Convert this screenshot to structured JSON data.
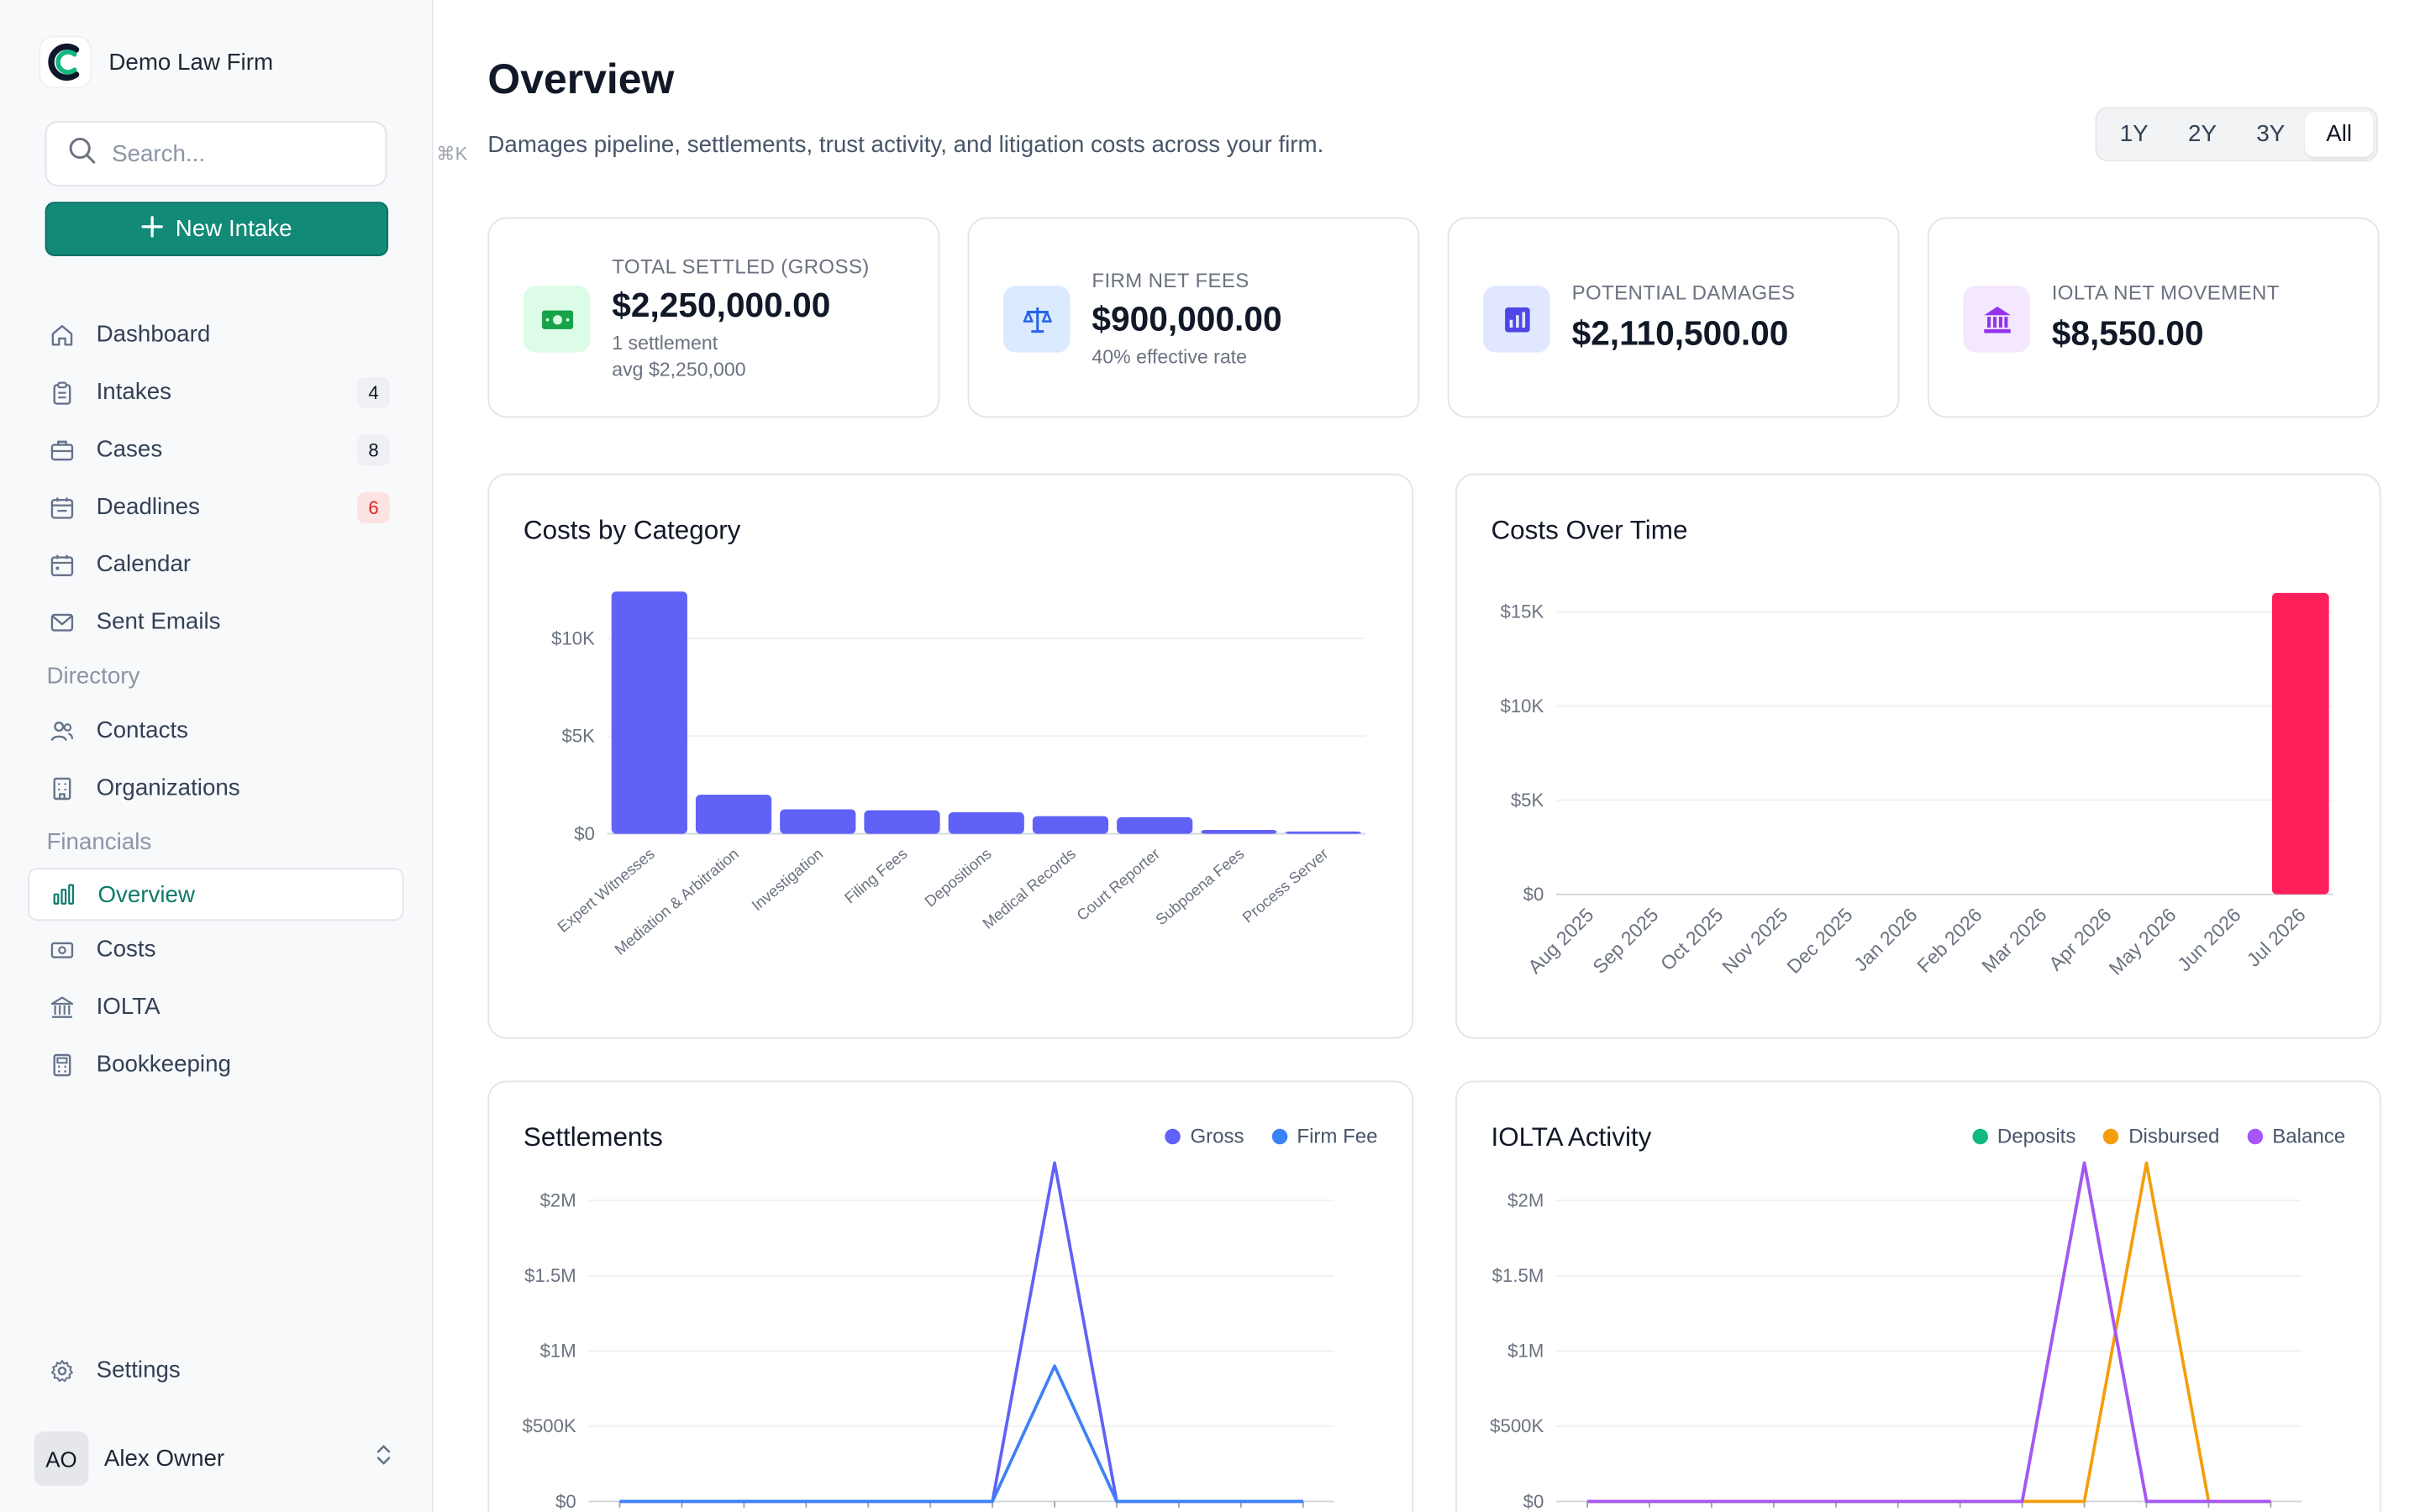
{
  "brand": {
    "name": "Demo Law Firm"
  },
  "search": {
    "placeholder": "Search...",
    "shortcut": "⌘K"
  },
  "new_intake": {
    "label": "New Intake"
  },
  "nav": [
    {
      "key": "dashboard",
      "label": "Dashboard",
      "icon": "home-icon"
    },
    {
      "key": "intakes",
      "label": "Intakes",
      "icon": "clipboard-icon",
      "badge": "4"
    },
    {
      "key": "cases",
      "label": "Cases",
      "icon": "briefcase-icon",
      "badge": "8"
    },
    {
      "key": "deadlines",
      "label": "Deadlines",
      "icon": "calendar-alert-icon",
      "badge": "6",
      "badge_color": "#dc2626"
    },
    {
      "key": "calendar",
      "label": "Calendar",
      "icon": "calendar-icon"
    },
    {
      "key": "sent-emails",
      "label": "Sent Emails",
      "icon": "mail-icon"
    }
  ],
  "directory": {
    "label": "Directory",
    "items": [
      {
        "key": "contacts",
        "label": "Contacts",
        "icon": "users-icon"
      },
      {
        "key": "organizations",
        "label": "Organizations",
        "icon": "building-icon"
      }
    ]
  },
  "financials": {
    "label": "Financials",
    "items": [
      {
        "key": "overview",
        "label": "Overview",
        "icon": "bar-chart-icon",
        "active": true
      },
      {
        "key": "costs",
        "label": "Costs",
        "icon": "banknote-icon"
      },
      {
        "key": "iolta",
        "label": "IOLTA",
        "icon": "landmark-icon"
      },
      {
        "key": "bookkeeping",
        "label": "Bookkeeping",
        "icon": "calculator-icon"
      }
    ]
  },
  "settings": {
    "label": "Settings"
  },
  "user": {
    "initials": "AO",
    "name": "Alex Owner"
  },
  "page": {
    "title": "Overview",
    "subtitle": "Damages pipeline, settlements, trust activity, and litigation costs across your firm."
  },
  "range": {
    "options": [
      "1Y",
      "2Y",
      "3Y",
      "All"
    ],
    "selected": "All"
  },
  "kpis": [
    {
      "label": "TOTAL SETTLED (GROSS)",
      "value": "$2,250,000.00",
      "sub1": "1 settlement",
      "sub2": "avg $2,250,000",
      "icon": "money-icon",
      "bg": "#dcfce7",
      "color": "#16a34a"
    },
    {
      "label": "FIRM NET FEES",
      "value": "$900,000.00",
      "sub1": "40% effective rate",
      "icon": "scale-icon",
      "bg": "#dbeafe",
      "color": "#2563eb"
    },
    {
      "label": "POTENTIAL DAMAGES",
      "value": "$2,110,500.00",
      "icon": "bar-chart-icon",
      "bg": "#e0e7ff",
      "color": "#4f46e5"
    },
    {
      "label": "IOLTA NET MOVEMENT",
      "value": "$8,550.00",
      "icon": "landmark-icon",
      "bg": "#f3e8ff",
      "color": "#9333ea"
    }
  ],
  "costs_by_category": {
    "title": "Costs by Category",
    "chart_data": {
      "type": "bar",
      "categories": [
        "Expert Witnesses",
        "Mediation & Arbitration",
        "Investigation",
        "Filing Fees",
        "Depositions",
        "Medical Records",
        "Court Reporter",
        "Subpoena Fees",
        "Process Server"
      ],
      "values": [
        12400,
        2000,
        1250,
        1200,
        1100,
        900,
        850,
        200,
        80
      ],
      "ylim": [
        0,
        12400
      ],
      "yticks": [
        "$0",
        "$5K",
        "$10K"
      ],
      "ytick_values": [
        0,
        5000,
        10000
      ],
      "color": "#6061f6",
      "grid": true
    }
  },
  "costs_over_time": {
    "title": "Costs Over Time",
    "chart_data": {
      "type": "bar",
      "categories": [
        "Aug 2025",
        "Sep 2025",
        "Oct 2025",
        "Nov 2025",
        "Dec 2025",
        "Jan 2026",
        "Feb 2026",
        "Mar 2026",
        "Apr 2026",
        "May 2026",
        "Jun 2026",
        "Jul 2026"
      ],
      "values": [
        0,
        0,
        0,
        0,
        0,
        0,
        0,
        0,
        0,
        0,
        0,
        16000
      ],
      "ylim": [
        0,
        15000
      ],
      "yticks": [
        "$0",
        "$5K",
        "$10K",
        "$15K"
      ],
      "ytick_values": [
        0,
        5000,
        10000,
        15000
      ],
      "color": "#ff1f5a",
      "grid": true
    }
  },
  "settlements": {
    "title": "Settlements",
    "chart_data": {
      "type": "line",
      "ylim": [
        0,
        2250000
      ],
      "yticks": [
        "$0",
        "$500K",
        "$1M",
        "$1.5M",
        "$2M"
      ],
      "ytick_values": [
        0,
        500000,
        1000000,
        1500000,
        2000000
      ],
      "grid": true,
      "legend": "top-right",
      "series": [
        {
          "name": "Gross",
          "color": "#6061f6",
          "values": [
            0,
            0,
            0,
            0,
            0,
            0,
            0,
            2250000,
            0,
            0,
            0,
            0
          ]
        },
        {
          "name": "Firm Fee",
          "color": "#3b82f6",
          "values": [
            0,
            0,
            0,
            0,
            0,
            0,
            0,
            900000,
            0,
            0,
            0,
            0
          ]
        }
      ]
    }
  },
  "iolta_activity": {
    "title": "IOLTA Activity",
    "chart_data": {
      "type": "line",
      "ylim": [
        0,
        2250000
      ],
      "yticks": [
        "$0",
        "$500K",
        "$1M",
        "$1.5M",
        "$2M"
      ],
      "ytick_values": [
        0,
        500000,
        1000000,
        1500000,
        2000000
      ],
      "grid": true,
      "legend": "top-right",
      "series": [
        {
          "name": "Deposits",
          "color": "#10b981",
          "values": [
            0,
            0,
            0,
            0,
            0,
            0,
            0,
            0,
            2250000,
            0,
            0,
            0
          ]
        },
        {
          "name": "Disbursed",
          "color": "#f59e0b",
          "values": [
            0,
            0,
            0,
            0,
            0,
            0,
            0,
            0,
            0,
            2250000,
            0,
            0
          ]
        },
        {
          "name": "Balance",
          "color": "#a855f7",
          "values": [
            0,
            0,
            0,
            0,
            0,
            0,
            0,
            0,
            2250000,
            0,
            0,
            0
          ]
        }
      ]
    }
  }
}
